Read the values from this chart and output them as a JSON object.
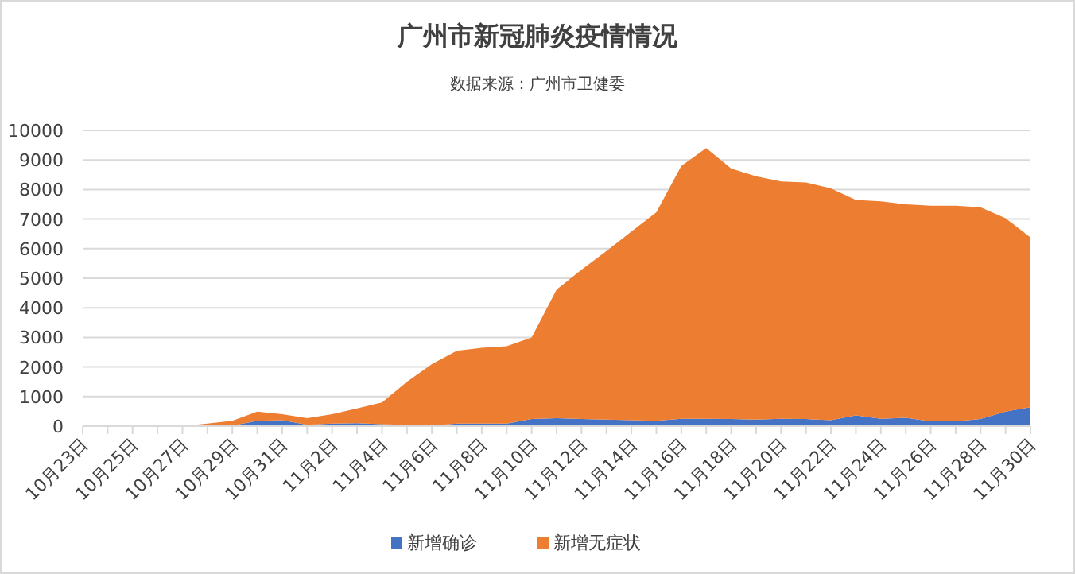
{
  "chart_data": {
    "type": "area",
    "title": "广州市新冠肺炎疫情情况",
    "subtitle": "数据来源：广州市卫健委",
    "categories": [
      "10月23日",
      null,
      "10月25日",
      null,
      "10月27日",
      null,
      "10月29日",
      null,
      "10月31日",
      null,
      "11月2日",
      null,
      "11月4日",
      null,
      "11月6日",
      null,
      "11月8日",
      null,
      "11月10日",
      null,
      "11月12日",
      null,
      "11月14日",
      null,
      "11月16日",
      null,
      "11月18日",
      null,
      "11月20日",
      null,
      "11月22日",
      null,
      "11月24日",
      null,
      "11月26日",
      null,
      "11月28日",
      null,
      "11月30日"
    ],
    "stacked": true,
    "series": [
      {
        "name": "新增确诊",
        "color": "#4472c4",
        "values": [
          0,
          0,
          0,
          0,
          0,
          0,
          20,
          180,
          200,
          50,
          90,
          100,
          70,
          40,
          20,
          90,
          90,
          90,
          240,
          270,
          240,
          220,
          200,
          180,
          250,
          250,
          240,
          220,
          250,
          240,
          200,
          360,
          250,
          280,
          160,
          160,
          240,
          490,
          640
        ]
      },
      {
        "name": "新增无症状",
        "color": "#ed7d31",
        "values": [
          0,
          0,
          0,
          0,
          0,
          90,
          160,
          310,
          200,
          220,
          310,
          500,
          730,
          1460,
          2080,
          2460,
          2560,
          2610,
          2760,
          4350,
          5050,
          5700,
          6380,
          7050,
          8550,
          9150,
          8470,
          8230,
          8020,
          8000,
          7840,
          7290,
          7350,
          7220,
          7290,
          7290,
          7160,
          6540,
          5740
        ]
      }
    ],
    "ylim": [
      0,
      10000
    ],
    "yticks": [
      0,
      1000,
      2000,
      3000,
      4000,
      5000,
      6000,
      7000,
      8000,
      9000,
      10000
    ],
    "grid": "y",
    "legend": "bottom"
  }
}
